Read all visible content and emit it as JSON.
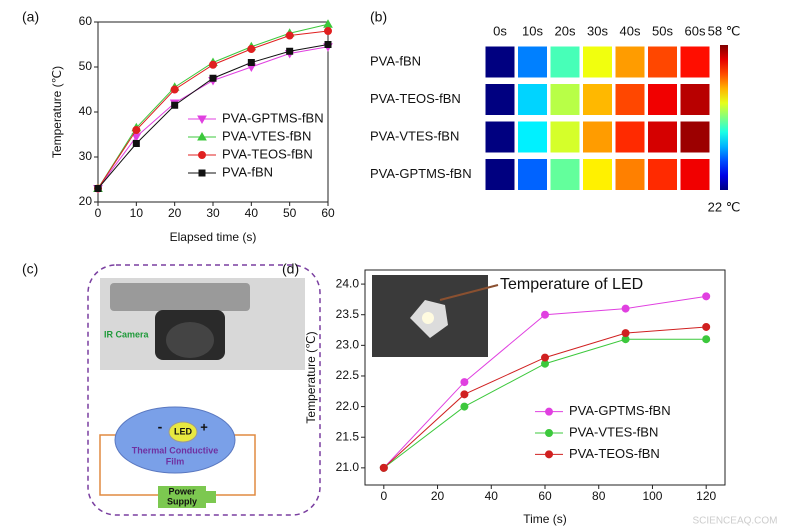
{
  "chart_data": [
    {
      "type": "line",
      "panel_label": "(a)",
      "xlabel": "Elapsed time (s)",
      "ylabel": "Temperature (℃)",
      "x": [
        0,
        10,
        20,
        30,
        40,
        50,
        60
      ],
      "xlim": [
        0,
        60
      ],
      "xticks": [
        0,
        10,
        20,
        30,
        40,
        50,
        60
      ],
      "ylim": [
        20,
        60
      ],
      "yticks": [
        20,
        30,
        40,
        50,
        60
      ],
      "legend": "lower right",
      "series": [
        {
          "name": "PVA-GPTMS-fBN",
          "color": "#e040e0",
          "marker": "triangle-down",
          "values": [
            23,
            34.5,
            42,
            47,
            50,
            53,
            54.5
          ]
        },
        {
          "name": "PVA-VTES-fBN",
          "color": "#3cc83c",
          "marker": "triangle-up",
          "values": [
            23,
            36.5,
            45.5,
            51,
            54.5,
            57.5,
            59.5
          ]
        },
        {
          "name": "PVA-TEOS-fBN",
          "color": "#e02020",
          "marker": "circle",
          "values": [
            23,
            36,
            45,
            50.5,
            54,
            57,
            58
          ]
        },
        {
          "name": "PVA-fBN",
          "color": "#111111",
          "marker": "square",
          "values": [
            23,
            33,
            41.5,
            47.5,
            51,
            53.5,
            55
          ]
        }
      ]
    },
    {
      "type": "heatmap",
      "panel_label": "(b)",
      "columns": [
        "0s",
        "10s",
        "20s",
        "30s",
        "40s",
        "50s",
        "60s"
      ],
      "rows": [
        "PVA-fBN",
        "PVA-TEOS-fBN",
        "PVA-VTES-fBN",
        "PVA-GPTMS-fBN"
      ],
      "values": [
        [
          22,
          31,
          38,
          44,
          48,
          51,
          53
        ],
        [
          22,
          34,
          42,
          47,
          51,
          54,
          56
        ],
        [
          22,
          35,
          43,
          48,
          52,
          55,
          57
        ],
        [
          22,
          30,
          39,
          45,
          49,
          52,
          54
        ]
      ],
      "colormap": "jet",
      "clim": [
        22,
        58
      ],
      "cticks": [
        {
          "value": 58,
          "label": "58 ℃"
        },
        {
          "value": 22,
          "label": "22 ℃"
        }
      ]
    },
    {
      "type": "line",
      "panel_label": "(d)",
      "annotation": "Temperature of LED",
      "xlabel": "Time (s)",
      "ylabel": "Temperature (℃)",
      "x": [
        0,
        30,
        60,
        90,
        120
      ],
      "xlim": [
        -7,
        127
      ],
      "xticks": [
        0,
        20,
        40,
        60,
        80,
        100,
        120
      ],
      "ylim": [
        20.72,
        24.23
      ],
      "yticks": [
        {
          "value": 21,
          "label": "21.0"
        },
        {
          "value": 21.5,
          "label": "21.5"
        },
        {
          "value": 22,
          "label": "22.0"
        },
        {
          "value": 22.5,
          "label": "22.5"
        },
        {
          "value": 23,
          "label": "23.0"
        },
        {
          "value": 23.5,
          "label": "23.5"
        },
        {
          "value": 24,
          "label": "24.0"
        }
      ],
      "legend": "lower right",
      "series": [
        {
          "name": "PVA-GPTMS-fBN",
          "color": "#e040e0",
          "marker": "circle",
          "values": [
            21,
            22.4,
            23.5,
            23.6,
            23.8
          ]
        },
        {
          "name": "PVA-VTES-fBN",
          "color": "#3cc83c",
          "marker": "circle",
          "values": [
            21,
            22.0,
            22.7,
            23.1,
            23.1
          ]
        },
        {
          "name": "PVA-TEOS-fBN",
          "color": "#d02020",
          "marker": "circle",
          "values": [
            21,
            22.2,
            22.8,
            23.2,
            23.3
          ]
        }
      ]
    }
  ],
  "diagram": {
    "panel_label": "(c)",
    "camera_label": "IR Camera",
    "led_label": "LED",
    "minus": "-",
    "plus": "+",
    "film_label_lines": [
      "Thermal Conductive",
      "Film"
    ],
    "supply_label_lines": [
      "Power",
      "Supply"
    ]
  },
  "watermark": "SCIENCEAQ.COM"
}
